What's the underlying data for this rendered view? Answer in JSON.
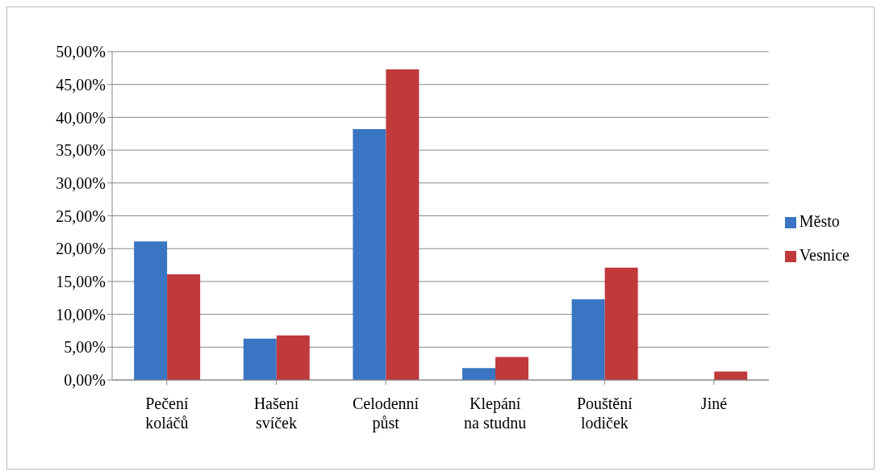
{
  "chart_data": {
    "type": "bar",
    "categories": [
      "Pečení koláčů",
      "Hašení svíček",
      "Celodenní půst",
      "Klepání na studnu",
      "Pouštění lodiček",
      "Jiné"
    ],
    "series": [
      {
        "name": "Město",
        "color": "#3a75c4",
        "values": [
          21.1,
          6.3,
          38.2,
          1.8,
          12.3,
          0
        ]
      },
      {
        "name": "Vesnice",
        "color": "#c0393b",
        "values": [
          16.1,
          6.8,
          47.3,
          3.5,
          17.1,
          1.3
        ]
      }
    ],
    "ylim": [
      0,
      50
    ],
    "yticks": [
      {
        "value": 0,
        "label": "0,00%"
      },
      {
        "value": 5,
        "label": "5,00%"
      },
      {
        "value": 10,
        "label": "10,00%"
      },
      {
        "value": 15,
        "label": "15,00%"
      },
      {
        "value": 20,
        "label": "20,00%"
      },
      {
        "value": 25,
        "label": "25,00%"
      },
      {
        "value": 30,
        "label": "30,00%"
      },
      {
        "value": 35,
        "label": "35,00%"
      },
      {
        "value": 40,
        "label": "40,00%"
      },
      {
        "value": 45,
        "label": "45,00%"
      },
      {
        "value": 50,
        "label": "50,00%"
      }
    ],
    "grid": "y",
    "legend": "right"
  }
}
